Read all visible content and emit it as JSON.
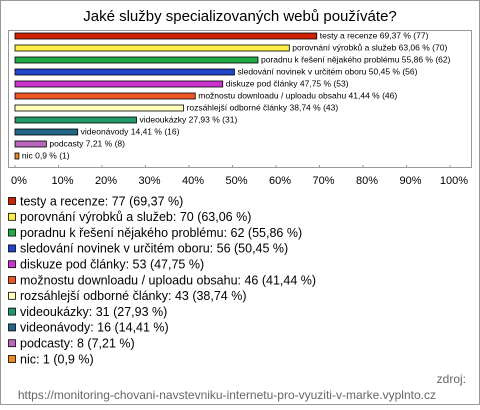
{
  "chart_data": {
    "type": "hbar",
    "title": "Jaké služby specializovaných webů používáte?",
    "categories": [
      "testy a recenze",
      "porovnání výrobků a služeb",
      "poradnu k řešení nějakého problému",
      "sledování novinek v určitém oboru",
      "diskuze pod články",
      "možnostu downloadu / uploadu obsahu",
      "rozsáhlejší odborné články",
      "videoukázky",
      "videonávody",
      "podcasty",
      "nic"
    ],
    "values": [
      69.37,
      63.06,
      55.86,
      50.45,
      47.75,
      41.44,
      38.74,
      27.93,
      14.41,
      7.21,
      0.9
    ],
    "value_labels": [
      "testy a recenze 69,37 % (77)",
      "porovnání výrobků a služeb 63,06 % (70)",
      "poradnu k řešení nějakého problému 55,86 % (62)",
      "sledování novinek v určitém oboru 50,45 % (56)",
      "diskuze pod články 47,75 % (53)",
      "možnostu downloadu / uploadu obsahu 41,44 % (46)",
      "rozsáhlejší odborné články 38,74 % (43)",
      "videoukázky 27,93 % (31)",
      "videonávody 14,41 % (16)",
      "podcasty 7,21 % (8)",
      "nic 0,9 % (1)"
    ],
    "legend_labels": [
      "testy a recenze: 77 (69,37 %)",
      "porovnání výrobků a služeb: 70 (63,06 %)",
      "poradnu k řešení nějakého problému: 62 (55,86 %)",
      "sledování novinek v určitém oboru: 56 (50,45 %)",
      "diskuze pod články: 53 (47,75 %)",
      "možnostu downloadu / uploadu obsahu: 46 (41,44 %)",
      "rozsáhlejší odborné články: 43 (38,74 %)",
      "videoukázky: 31 (27,93 %)",
      "videonávody: 16 (14,41 %)",
      "podcasty: 8 (7,21 %)",
      "nic: 1 (0,9 %)"
    ],
    "colors": [
      "#cc2200",
      "#ffee44",
      "#22aa44",
      "#2244cc",
      "#cc33cc",
      "#ee5522",
      "#ffffbb",
      "#229966",
      "#226688",
      "#bb66bb",
      "#ee8822"
    ],
    "xlim": [
      0,
      100
    ],
    "xticks": [
      {
        "value": 0,
        "label": "0%"
      },
      {
        "value": 10,
        "label": "10%"
      },
      {
        "value": 20,
        "label": "20%"
      },
      {
        "value": 30,
        "label": "30%"
      },
      {
        "value": 40,
        "label": "40%"
      },
      {
        "value": 50,
        "label": "50%"
      },
      {
        "value": 60,
        "label": "60%"
      },
      {
        "value": 70,
        "label": "70%"
      },
      {
        "value": 80,
        "label": "80%"
      },
      {
        "value": 90,
        "label": "90%"
      },
      {
        "value": 100,
        "label": "100%"
      }
    ],
    "source_label": "zdroj:",
    "source": "https://monitoring-chovani-navstevniku-internetu-pro-vyuziti-v-marke.vyplnto.cz"
  }
}
